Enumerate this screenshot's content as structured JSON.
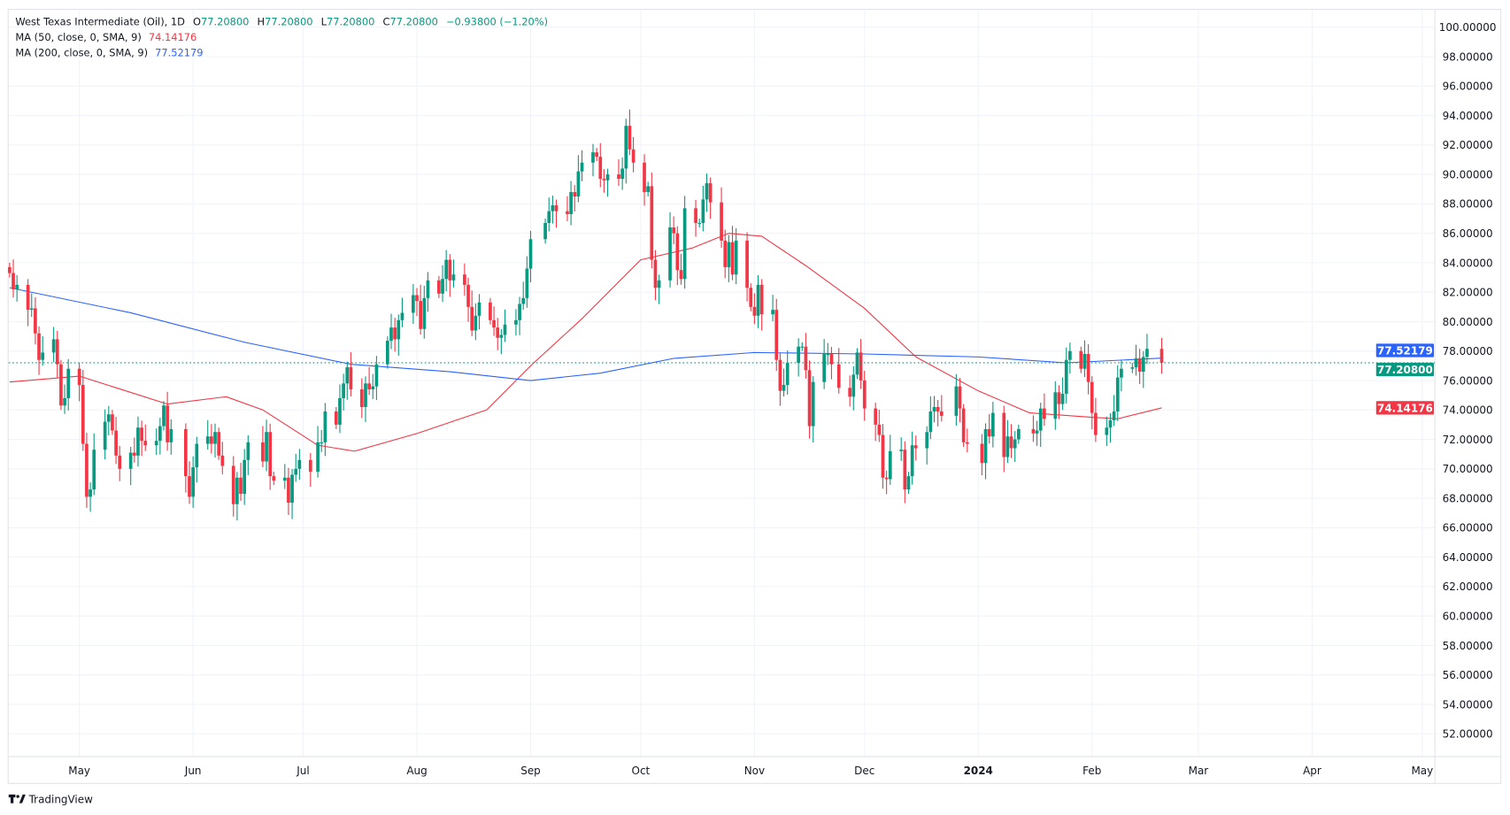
{
  "header": {
    "symbol": "West Texas Intermediate (Oil), 1D",
    "o_label": "O",
    "o": "77.20800",
    "h_label": "H",
    "h": "77.20800",
    "l_label": "L",
    "l": "77.20800",
    "c_label": "C",
    "c": "77.20800",
    "change": "−0.93800 (−1.20%)",
    "ma50_label": "MA (50, close, 0, SMA, 9)",
    "ma50_value": "74.14176",
    "ma200_label": "MA (200, close, 0, SMA, 9)",
    "ma200_value": "77.52179"
  },
  "branding": {
    "logo_text": "TradingView"
  },
  "colors": {
    "up": "#089981",
    "down": "#f23645",
    "ma50": "#f23645",
    "ma200": "#2962ff",
    "grid": "#f0f3fa"
  },
  "chart_data": {
    "type": "candlestick",
    "title": "West Texas Intermediate (Oil), 1D",
    "ylim": [
      51,
      101
    ],
    "y_ticks": [
      "100.00000",
      "98.00000",
      "96.00000",
      "94.00000",
      "92.00000",
      "90.00000",
      "88.00000",
      "86.00000",
      "84.00000",
      "82.00000",
      "80.00000",
      "78.00000",
      "76.00000",
      "74.00000",
      "72.00000",
      "70.00000",
      "68.00000",
      "66.00000",
      "64.00000",
      "62.00000",
      "60.00000",
      "58.00000",
      "56.00000",
      "54.00000",
      "52.00000"
    ],
    "x_ticks": [
      {
        "label": "May",
        "date": "2023-05-01"
      },
      {
        "label": "Jun",
        "date": "2023-06-01"
      },
      {
        "label": "Jul",
        "date": "2023-07-01"
      },
      {
        "label": "Aug",
        "date": "2023-08-01"
      },
      {
        "label": "Sep",
        "date": "2023-09-01"
      },
      {
        "label": "Oct",
        "date": "2023-10-01"
      },
      {
        "label": "Nov",
        "date": "2023-11-01"
      },
      {
        "label": "Dec",
        "date": "2023-12-01"
      },
      {
        "label": "2024",
        "date": "2024-01-01"
      },
      {
        "label": "Feb",
        "date": "2024-02-01"
      },
      {
        "label": "Mar",
        "date": "2024-03-01"
      },
      {
        "label": "Apr",
        "date": "2024-04-01"
      },
      {
        "label": "May",
        "date": "2024-05-01"
      }
    ],
    "last_price": 77.208,
    "price_labels": {
      "last": "77.20800",
      "ma50": "74.14176",
      "ma200": "77.52179"
    },
    "closes": [
      [
        "2023-04-12",
        83.3
      ],
      [
        "2023-04-13",
        82.2
      ],
      [
        "2023-04-14",
        82.5
      ],
      [
        "2023-04-17",
        80.8
      ],
      [
        "2023-04-18",
        80.9
      ],
      [
        "2023-04-19",
        79.2
      ],
      [
        "2023-04-20",
        77.4
      ],
      [
        "2023-04-21",
        77.9
      ],
      [
        "2023-04-24",
        78.8
      ],
      [
        "2023-04-25",
        77.1
      ],
      [
        "2023-04-26",
        74.3
      ],
      [
        "2023-04-27",
        74.8
      ],
      [
        "2023-04-28",
        76.8
      ],
      [
        "2023-05-01",
        75.7
      ],
      [
        "2023-05-02",
        71.7
      ],
      [
        "2023-05-03",
        68.1
      ],
      [
        "2023-05-04",
        68.6
      ],
      [
        "2023-05-05",
        71.3
      ],
      [
        "2023-05-08",
        73.2
      ],
      [
        "2023-05-09",
        73.7
      ],
      [
        "2023-05-10",
        72.6
      ],
      [
        "2023-05-11",
        70.9
      ],
      [
        "2023-05-12",
        70.0
      ],
      [
        "2023-05-15",
        71.1
      ],
      [
        "2023-05-16",
        70.9
      ],
      [
        "2023-05-17",
        72.8
      ],
      [
        "2023-05-18",
        71.9
      ],
      [
        "2023-05-19",
        71.6
      ],
      [
        "2023-05-22",
        71.9
      ],
      [
        "2023-05-23",
        72.9
      ],
      [
        "2023-05-24",
        74.3
      ],
      [
        "2023-05-25",
        71.8
      ],
      [
        "2023-05-26",
        72.7
      ],
      [
        "2023-05-30",
        69.5
      ],
      [
        "2023-05-31",
        68.1
      ],
      [
        "2023-06-01",
        70.1
      ],
      [
        "2023-06-02",
        71.7
      ],
      [
        "2023-06-05",
        72.2
      ],
      [
        "2023-06-06",
        71.7
      ],
      [
        "2023-06-07",
        72.5
      ],
      [
        "2023-06-08",
        70.9
      ],
      [
        "2023-06-09",
        70.2
      ],
      [
        "2023-06-12",
        67.6
      ],
      [
        "2023-06-13",
        69.4
      ],
      [
        "2023-06-14",
        68.3
      ],
      [
        "2023-06-15",
        70.6
      ],
      [
        "2023-06-16",
        71.8
      ],
      [
        "2023-06-20",
        70.5
      ],
      [
        "2023-06-21",
        72.5
      ],
      [
        "2023-06-22",
        69.5
      ],
      [
        "2023-06-23",
        69.2
      ],
      [
        "2023-06-26",
        69.4
      ],
      [
        "2023-06-27",
        67.7
      ],
      [
        "2023-06-28",
        69.6
      ],
      [
        "2023-06-29",
        70.0
      ],
      [
        "2023-06-30",
        70.6
      ],
      [
        "2023-07-03",
        69.8
      ],
      [
        "2023-07-05",
        71.8
      ],
      [
        "2023-07-06",
        71.8
      ],
      [
        "2023-07-07",
        73.9
      ],
      [
        "2023-07-10",
        73.0
      ],
      [
        "2023-07-11",
        74.8
      ],
      [
        "2023-07-12",
        75.8
      ],
      [
        "2023-07-13",
        76.9
      ],
      [
        "2023-07-14",
        75.4
      ],
      [
        "2023-07-17",
        74.2
      ],
      [
        "2023-07-18",
        75.8
      ],
      [
        "2023-07-19",
        75.4
      ],
      [
        "2023-07-20",
        75.6
      ],
      [
        "2023-07-21",
        77.1
      ],
      [
        "2023-07-24",
        78.7
      ],
      [
        "2023-07-25",
        79.6
      ],
      [
        "2023-07-26",
        78.8
      ],
      [
        "2023-07-27",
        80.1
      ],
      [
        "2023-07-28",
        80.6
      ],
      [
        "2023-07-31",
        81.8
      ],
      [
        "2023-08-01",
        81.4
      ],
      [
        "2023-08-02",
        79.5
      ],
      [
        "2023-08-03",
        81.6
      ],
      [
        "2023-08-04",
        82.8
      ],
      [
        "2023-08-07",
        81.9
      ],
      [
        "2023-08-08",
        82.9
      ],
      [
        "2023-08-09",
        84.2
      ],
      [
        "2023-08-10",
        82.8
      ],
      [
        "2023-08-11",
        83.2
      ],
      [
        "2023-08-14",
        82.5
      ],
      [
        "2023-08-15",
        81.0
      ],
      [
        "2023-08-16",
        79.4
      ],
      [
        "2023-08-17",
        80.4
      ],
      [
        "2023-08-18",
        81.3
      ],
      [
        "2023-08-21",
        80.1
      ],
      [
        "2023-08-22",
        79.6
      ],
      [
        "2023-08-23",
        78.9
      ],
      [
        "2023-08-24",
        79.1
      ],
      [
        "2023-08-25",
        79.8
      ],
      [
        "2023-08-28",
        80.1
      ],
      [
        "2023-08-29",
        81.2
      ],
      [
        "2023-08-30",
        81.6
      ],
      [
        "2023-08-31",
        83.6
      ],
      [
        "2023-09-01",
        85.6
      ],
      [
        "2023-09-05",
        86.7
      ],
      [
        "2023-09-06",
        87.5
      ],
      [
        "2023-09-07",
        87.9
      ],
      [
        "2023-09-08",
        87.5
      ],
      [
        "2023-09-11",
        87.3
      ],
      [
        "2023-09-12",
        88.8
      ],
      [
        "2023-09-13",
        88.5
      ],
      [
        "2023-09-14",
        90.2
      ],
      [
        "2023-09-15",
        90.8
      ],
      [
        "2023-09-18",
        91.5
      ],
      [
        "2023-09-19",
        91.2
      ],
      [
        "2023-09-20",
        89.7
      ],
      [
        "2023-09-21",
        89.6
      ],
      [
        "2023-09-22",
        90.0
      ],
      [
        "2023-09-25",
        89.7
      ],
      [
        "2023-09-26",
        90.4
      ],
      [
        "2023-09-27",
        93.3
      ],
      [
        "2023-09-28",
        91.7
      ],
      [
        "2023-09-29",
        90.8
      ],
      [
        "2023-10-02",
        88.8
      ],
      [
        "2023-10-03",
        89.2
      ],
      [
        "2023-10-04",
        84.2
      ],
      [
        "2023-10-05",
        82.3
      ],
      [
        "2023-10-06",
        82.8
      ],
      [
        "2023-10-09",
        86.4
      ],
      [
        "2023-10-10",
        86.0
      ],
      [
        "2023-10-11",
        83.5
      ],
      [
        "2023-10-12",
        82.9
      ],
      [
        "2023-10-13",
        87.7
      ],
      [
        "2023-10-16",
        86.7
      ],
      [
        "2023-10-17",
        86.7
      ],
      [
        "2023-10-18",
        88.3
      ],
      [
        "2023-10-19",
        89.4
      ],
      [
        "2023-10-20",
        88.1
      ],
      [
        "2023-10-23",
        85.5
      ],
      [
        "2023-10-24",
        83.7
      ],
      [
        "2023-10-25",
        85.4
      ],
      [
        "2023-10-26",
        83.2
      ],
      [
        "2023-10-27",
        85.5
      ],
      [
        "2023-10-30",
        82.3
      ],
      [
        "2023-10-31",
        81.0
      ],
      [
        "2023-11-01",
        80.4
      ],
      [
        "2023-11-02",
        82.5
      ],
      [
        "2023-11-03",
        80.5
      ],
      [
        "2023-11-06",
        80.8
      ],
      [
        "2023-11-07",
        77.4
      ],
      [
        "2023-11-08",
        75.3
      ],
      [
        "2023-11-09",
        75.7
      ],
      [
        "2023-11-10",
        77.2
      ],
      [
        "2023-11-13",
        78.3
      ],
      [
        "2023-11-14",
        78.3
      ],
      [
        "2023-11-15",
        76.7
      ],
      [
        "2023-11-16",
        72.9
      ],
      [
        "2023-11-17",
        75.9
      ],
      [
        "2023-11-20",
        77.8
      ],
      [
        "2023-11-21",
        77.8
      ],
      [
        "2023-11-22",
        77.1
      ],
      [
        "2023-11-24",
        75.5
      ],
      [
        "2023-11-27",
        74.9
      ],
      [
        "2023-11-28",
        76.4
      ],
      [
        "2023-11-29",
        77.9
      ],
      [
        "2023-11-30",
        76.0
      ],
      [
        "2023-12-01",
        74.1
      ],
      [
        "2023-12-04",
        73.0
      ],
      [
        "2023-12-05",
        72.3
      ],
      [
        "2023-12-06",
        69.4
      ],
      [
        "2023-12-07",
        69.3
      ],
      [
        "2023-12-08",
        71.2
      ],
      [
        "2023-12-11",
        71.3
      ],
      [
        "2023-12-12",
        68.6
      ],
      [
        "2023-12-13",
        69.5
      ],
      [
        "2023-12-14",
        71.6
      ],
      [
        "2023-12-15",
        71.4
      ],
      [
        "2023-12-18",
        72.5
      ],
      [
        "2023-12-19",
        73.9
      ],
      [
        "2023-12-20",
        74.2
      ],
      [
        "2023-12-21",
        73.9
      ],
      [
        "2023-12-22",
        73.6
      ],
      [
        "2023-12-26",
        75.6
      ],
      [
        "2023-12-27",
        74.1
      ],
      [
        "2023-12-28",
        71.8
      ],
      [
        "2023-12-29",
        71.7
      ],
      [
        "2024-01-02",
        70.4
      ],
      [
        "2024-01-03",
        72.7
      ],
      [
        "2024-01-04",
        72.2
      ],
      [
        "2024-01-05",
        73.8
      ],
      [
        "2024-01-08",
        70.8
      ],
      [
        "2024-01-09",
        72.2
      ],
      [
        "2024-01-10",
        71.4
      ],
      [
        "2024-01-11",
        72.0
      ],
      [
        "2024-01-12",
        72.7
      ],
      [
        "2024-01-16",
        72.4
      ],
      [
        "2024-01-17",
        72.6
      ],
      [
        "2024-01-18",
        74.1
      ],
      [
        "2024-01-19",
        73.4
      ],
      [
        "2024-01-22",
        75.2
      ],
      [
        "2024-01-23",
        74.4
      ],
      [
        "2024-01-24",
        75.1
      ],
      [
        "2024-01-25",
        77.4
      ],
      [
        "2024-01-26",
        78.0
      ],
      [
        "2024-01-29",
        76.8
      ],
      [
        "2024-01-30",
        77.8
      ],
      [
        "2024-01-31",
        75.9
      ],
      [
        "2024-02-01",
        73.8
      ],
      [
        "2024-02-02",
        72.3
      ],
      [
        "2024-02-05",
        72.8
      ],
      [
        "2024-02-06",
        73.3
      ],
      [
        "2024-02-07",
        73.9
      ],
      [
        "2024-02-08",
        76.2
      ],
      [
        "2024-02-09",
        76.8
      ],
      [
        "2024-02-12",
        76.9
      ],
      [
        "2024-02-13",
        77.5
      ],
      [
        "2024-02-14",
        76.6
      ],
      [
        "2024-02-15",
        77.6
      ],
      [
        "2024-02-16",
        78.15
      ],
      [
        "2024-02-20",
        77.21
      ]
    ],
    "series": [
      {
        "name": "MA (50, close, 0, SMA, 9)",
        "color": "#f23645",
        "points": [
          [
            "2023-04-12",
            75.9
          ],
          [
            "2023-05-01",
            76.3
          ],
          [
            "2023-05-25",
            74.4
          ],
          [
            "2023-06-10",
            74.9
          ],
          [
            "2023-06-20",
            74.0
          ],
          [
            "2023-07-05",
            71.6
          ],
          [
            "2023-07-15",
            71.2
          ],
          [
            "2023-08-01",
            72.4
          ],
          [
            "2023-08-20",
            74.0
          ],
          [
            "2023-09-01",
            77.0
          ],
          [
            "2023-09-15",
            80.2
          ],
          [
            "2023-10-01",
            84.2
          ],
          [
            "2023-10-15",
            85.0
          ],
          [
            "2023-10-25",
            86.0
          ],
          [
            "2023-11-03",
            85.8
          ],
          [
            "2023-11-15",
            83.8
          ],
          [
            "2023-12-01",
            80.9
          ],
          [
            "2023-12-15",
            77.6
          ],
          [
            "2024-01-01",
            75.3
          ],
          [
            "2024-01-15",
            73.8
          ],
          [
            "2024-02-01",
            73.5
          ],
          [
            "2024-02-08",
            73.4
          ],
          [
            "2024-02-20",
            74.14
          ]
        ]
      },
      {
        "name": "MA (200, close, 0, SMA, 9)",
        "color": "#2962ff",
        "points": [
          [
            "2023-04-12",
            82.3
          ],
          [
            "2023-05-15",
            80.6
          ],
          [
            "2023-06-15",
            78.6
          ],
          [
            "2023-07-14",
            77.1
          ],
          [
            "2023-08-10",
            76.6
          ],
          [
            "2023-09-01",
            76.0
          ],
          [
            "2023-09-20",
            76.5
          ],
          [
            "2023-10-10",
            77.5
          ],
          [
            "2023-11-01",
            77.9
          ],
          [
            "2023-12-01",
            77.8
          ],
          [
            "2024-01-01",
            77.6
          ],
          [
            "2024-01-25",
            77.2
          ],
          [
            "2024-02-20",
            77.52
          ]
        ]
      }
    ]
  }
}
